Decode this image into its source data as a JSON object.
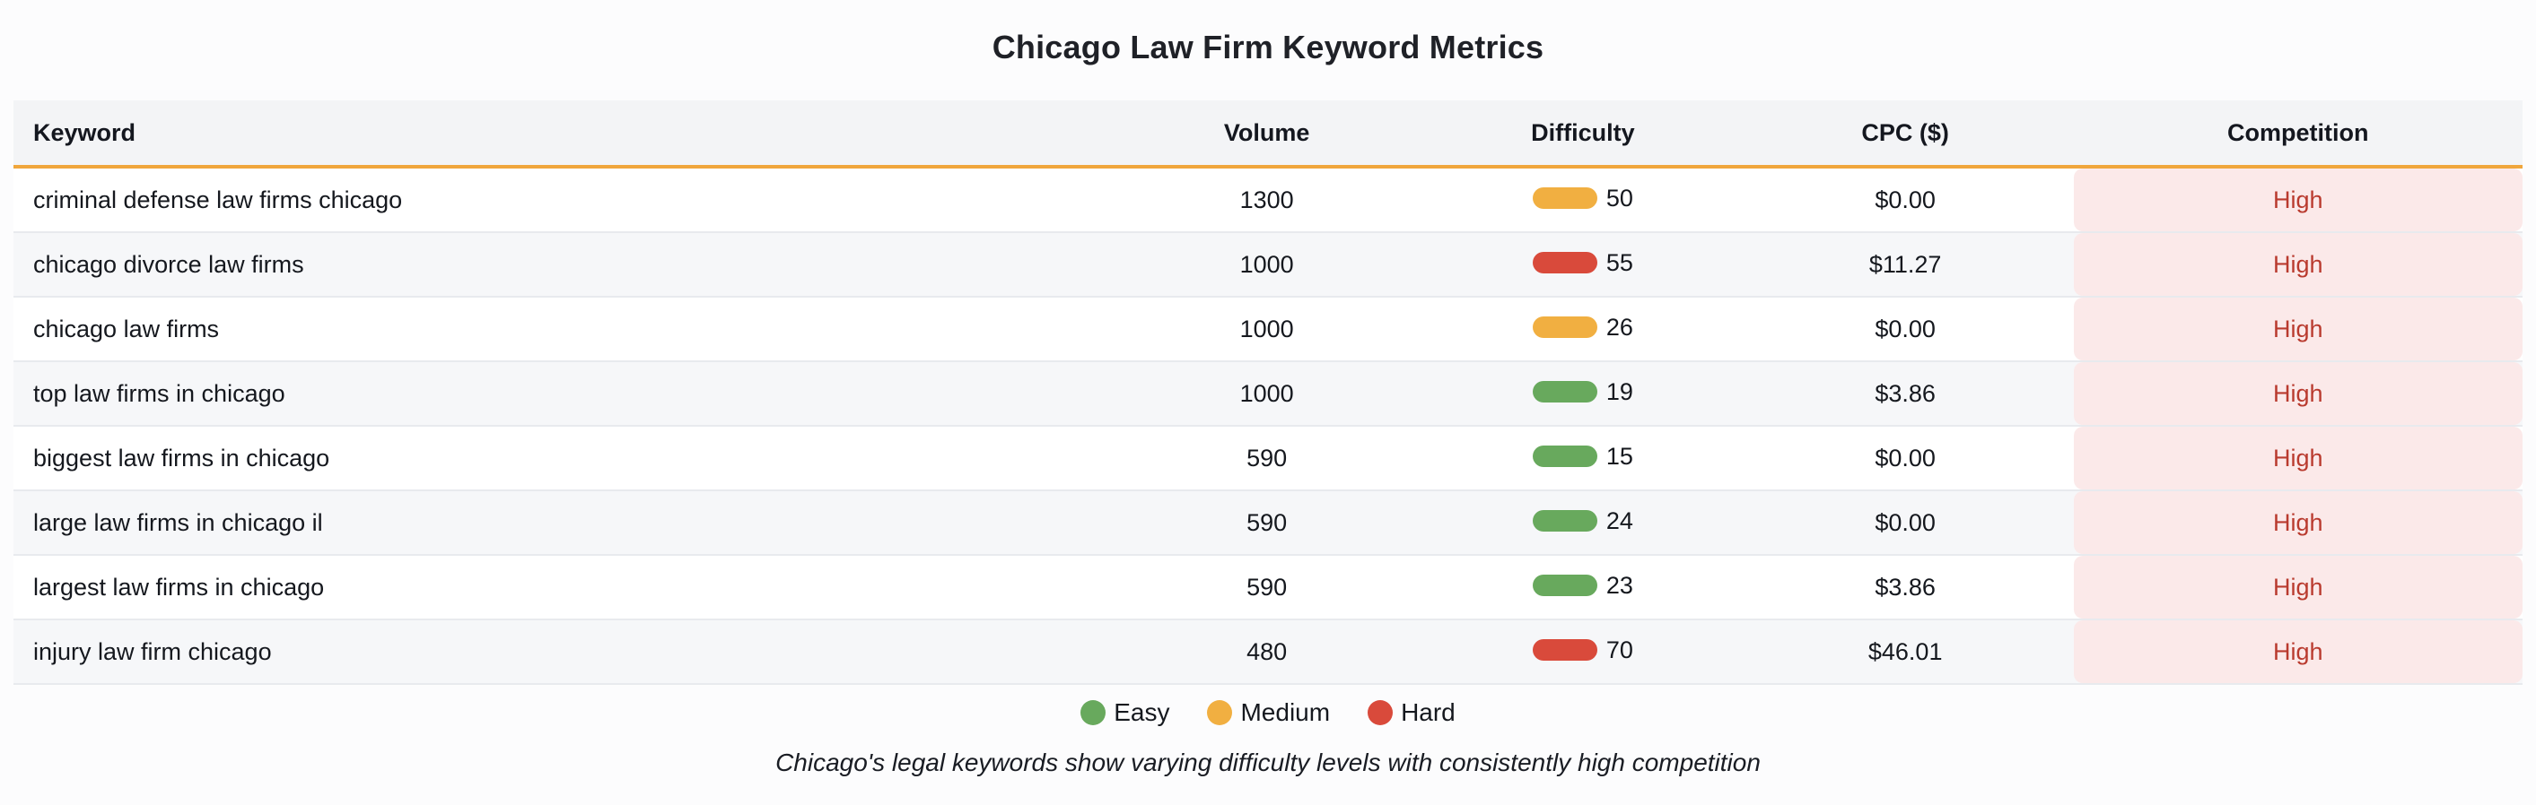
{
  "title": "Chicago Law Firm Keyword Metrics",
  "caption": "Chicago's legal keywords show varying difficulty levels with consistently high competition",
  "colors": {
    "accent_header_border": "#f0a63c",
    "header_bg": "#f3f4f6",
    "row_alt_bg": "#f6f7f9",
    "competition_high_bg": "#fbe9e9",
    "competition_high_text": "#b93a2e",
    "difficulty": {
      "Easy": "#68a95d",
      "Medium": "#f1af41",
      "Hard": "#d94a3b"
    }
  },
  "chart_data": {
    "type": "table",
    "title": "Chicago Law Firm Keyword Metrics",
    "columns": [
      "Keyword",
      "Volume",
      "Difficulty",
      "CPC ($)",
      "Competition"
    ],
    "rows": [
      {
        "keyword": "criminal defense law firms chicago",
        "volume": "1300",
        "difficulty": "50",
        "difficulty_level": "Medium",
        "cpc": "$0.00",
        "competition": "High"
      },
      {
        "keyword": "chicago divorce law firms",
        "volume": "1000",
        "difficulty": "55",
        "difficulty_level": "Hard",
        "cpc": "$11.27",
        "competition": "High"
      },
      {
        "keyword": "chicago law firms",
        "volume": "1000",
        "difficulty": "26",
        "difficulty_level": "Medium",
        "cpc": "$0.00",
        "competition": "High"
      },
      {
        "keyword": "top law firms in chicago",
        "volume": "1000",
        "difficulty": "19",
        "difficulty_level": "Easy",
        "cpc": "$3.86",
        "competition": "High"
      },
      {
        "keyword": "biggest law firms in chicago",
        "volume": "590",
        "difficulty": "15",
        "difficulty_level": "Easy",
        "cpc": "$0.00",
        "competition": "High"
      },
      {
        "keyword": "large law firms in chicago il",
        "volume": "590",
        "difficulty": "24",
        "difficulty_level": "Easy",
        "cpc": "$0.00",
        "competition": "High"
      },
      {
        "keyword": "largest law firms in chicago",
        "volume": "590",
        "difficulty": "23",
        "difficulty_level": "Easy",
        "cpc": "$3.86",
        "competition": "High"
      },
      {
        "keyword": "injury law firm chicago",
        "volume": "480",
        "difficulty": "70",
        "difficulty_level": "Hard",
        "cpc": "$46.01",
        "competition": "High"
      }
    ],
    "legend": [
      {
        "label": "Easy",
        "color": "#68a95d"
      },
      {
        "label": "Medium",
        "color": "#f1af41"
      },
      {
        "label": "Hard",
        "color": "#d94a3b"
      }
    ],
    "caption": "Chicago's legal keywords show varying difficulty levels with consistently high competition",
    "layout": {
      "legend_position": "bottom",
      "row_striping": true,
      "grid": false
    }
  }
}
